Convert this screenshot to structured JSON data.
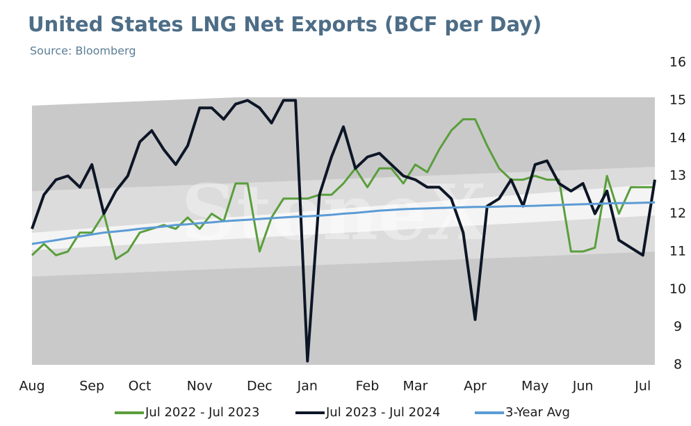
{
  "chart_data": {
    "type": "line",
    "title": "United States LNG Net Exports (BCF per Day)",
    "subtitle": "Source: Bloomberg",
    "watermark": "StoneX",
    "categories": [
      "Aug",
      null,
      null,
      null,
      null,
      "Sep",
      null,
      null,
      null,
      "Oct",
      null,
      null,
      null,
      null,
      "Nov",
      null,
      null,
      null,
      null,
      "Dec",
      null,
      null,
      null,
      "Jan",
      null,
      null,
      null,
      null,
      "Feb",
      null,
      null,
      null,
      "Mar",
      null,
      null,
      null,
      null,
      "Apr",
      null,
      null,
      null,
      null,
      "May",
      null,
      null,
      null,
      "Jun",
      null,
      null,
      null,
      null,
      "Jul",
      null
    ],
    "series": [
      {
        "name": "Jul 2022 - Jul 2023",
        "color": "#5a9e3c",
        "values": [
          10.9,
          11.2,
          10.9,
          11.0,
          11.5,
          11.5,
          12.0,
          10.8,
          11.0,
          11.5,
          11.6,
          11.7,
          11.6,
          11.9,
          11.6,
          12.0,
          11.8,
          12.8,
          12.8,
          11.0,
          11.9,
          12.4,
          12.4,
          12.4,
          12.5,
          12.5,
          12.8,
          13.2,
          12.7,
          13.2,
          13.2,
          12.8,
          13.3,
          13.1,
          13.7,
          14.2,
          14.5,
          14.5,
          13.8,
          13.2,
          12.9,
          12.9,
          13.0,
          12.9,
          12.9,
          11.0,
          11.0,
          11.1,
          13.0,
          12.0,
          12.7,
          12.7,
          12.7
        ]
      },
      {
        "name": "Jul 2023 - Jul 2024",
        "color": "#0d1626",
        "values": [
          11.6,
          12.5,
          12.9,
          13.0,
          12.7,
          13.3,
          12.0,
          12.6,
          13.0,
          13.9,
          14.2,
          13.7,
          13.3,
          13.8,
          14.8,
          14.8,
          14.5,
          14.9,
          15.0,
          14.8,
          14.4,
          15.0,
          15.0,
          8.1,
          12.5,
          13.5,
          14.3,
          13.2,
          13.5,
          13.6,
          13.3,
          13.0,
          12.9,
          12.7,
          12.7,
          12.4,
          11.5,
          9.2,
          12.2,
          12.4,
          12.9,
          12.2,
          13.3,
          13.4,
          12.8,
          12.6,
          12.8,
          12.0,
          12.6,
          11.3,
          11.1,
          10.9,
          12.9
        ]
      },
      {
        "name": "3-Year Avg",
        "color": "#5b9bd5",
        "values": [
          11.2,
          11.25,
          11.3,
          11.35,
          11.4,
          11.45,
          11.5,
          11.53,
          11.56,
          11.6,
          11.63,
          11.66,
          11.7,
          11.72,
          11.75,
          11.77,
          11.8,
          11.82,
          11.84,
          11.86,
          11.88,
          11.9,
          11.92,
          11.93,
          11.95,
          11.97,
          12.0,
          12.02,
          12.05,
          12.08,
          12.1,
          12.12,
          12.13,
          12.14,
          12.15,
          12.16,
          12.17,
          12.18,
          12.18,
          12.19,
          12.2,
          12.2,
          12.21,
          12.22,
          12.23,
          12.24,
          12.25,
          12.26,
          12.27,
          12.28,
          12.28,
          12.29,
          12.3
        ]
      }
    ],
    "ylim": [
      8,
      16
    ],
    "yticks": [
      8,
      9,
      10,
      11,
      12,
      13,
      14,
      15,
      16
    ],
    "grid": false,
    "legend": "bottom"
  }
}
